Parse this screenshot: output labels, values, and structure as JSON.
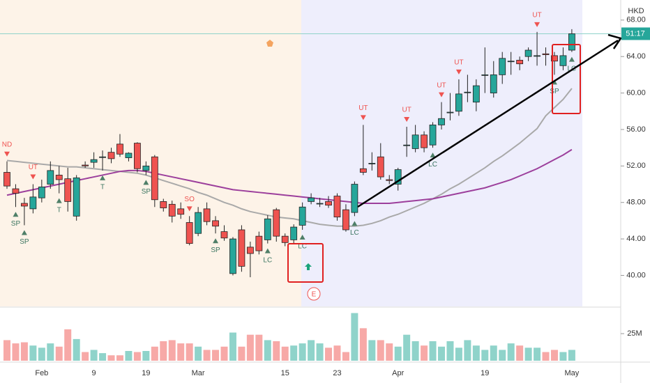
{
  "chart_data": {
    "type": "candlestick",
    "currency": "HKD",
    "price_tag": "51:17",
    "price_line": 66.5,
    "earnings_marker": "E",
    "categories": [
      null,
      null,
      null,
      null,
      "Feb",
      null,
      null,
      null,
      null,
      null,
      "9",
      null,
      null,
      null,
      null,
      null,
      "19",
      null,
      null,
      null,
      null,
      null,
      "Mar",
      null,
      null,
      null,
      null,
      null,
      null,
      null,
      null,
      null,
      "15",
      null,
      null,
      null,
      null,
      null,
      "23",
      null,
      null,
      null,
      null,
      null,
      null,
      "Apr",
      null,
      null,
      null,
      null,
      null,
      null,
      null,
      null,
      null,
      "19",
      null,
      null,
      null,
      null,
      null,
      null,
      null,
      null,
      null,
      "May"
    ],
    "open": [
      51.3,
      49.5,
      47.9,
      47.3,
      48.5,
      50,
      51,
      50.6,
      46.5,
      52.1,
      52.4,
      53,
      53.5,
      54.4,
      52.9,
      54.5,
      51.5,
      53,
      48.1,
      47.8,
      47.3,
      45.8,
      44.6,
      47.3,
      46,
      44.8,
      40.2,
      45,
      43.1,
      44.3,
      43.9,
      47.2,
      44.3,
      43.9,
      45.5,
      48.1,
      47.9,
      48.1,
      48.7,
      47.2,
      46.9,
      51.7,
      52.3,
      53,
      50.5,
      50,
      54.3,
      53.9,
      55.4,
      54.3,
      56.5,
      57.9,
      58,
      60.1,
      59,
      62,
      60,
      62,
      63.5,
      63.6,
      64,
      64.1,
      64.3,
      64.1,
      63,
      64.7
    ],
    "high": [
      52.5,
      50,
      48.5,
      50,
      50.5,
      52.5,
      52,
      51.8,
      51,
      52.5,
      53.5,
      53.7,
      54,
      55.5,
      53.5,
      54.6,
      52.5,
      53.2,
      48.4,
      48.2,
      48,
      46.5,
      47.5,
      48,
      46.5,
      45.5,
      44.2,
      45.5,
      43.7,
      44.8,
      46.6,
      47.4,
      44.6,
      45.6,
      48,
      49,
      48.5,
      48.7,
      49,
      47.8,
      50.3,
      56.5,
      53.5,
      54.5,
      51,
      51.8,
      56.3,
      56.5,
      55.8,
      56.8,
      59,
      60,
      61.5,
      62,
      61.5,
      65,
      63.5,
      64.5,
      64.5,
      64,
      65,
      66.7,
      65,
      64.5,
      65,
      67
    ],
    "low": [
      49.5,
      47.5,
      45.5,
      46.8,
      48,
      49.5,
      49,
      47,
      46,
      51.8,
      51.8,
      51.5,
      52.3,
      53,
      52.5,
      51.3,
      51,
      47.5,
      47,
      45.8,
      46.2,
      43.3,
      44.3,
      45.5,
      44.6,
      43.8,
      40,
      40.4,
      39.8,
      42.3,
      43.5,
      43.7,
      43.2,
      43.5,
      45,
      47.8,
      47.5,
      47.4,
      46,
      44.8,
      46.5,
      51,
      51.5,
      50.5,
      50,
      49.3,
      53,
      53.5,
      53.5,
      54,
      56,
      57,
      57.5,
      59,
      58,
      60,
      59.5,
      61,
      62,
      62.5,
      63.5,
      63,
      63,
      62,
      62.5,
      64.5
    ],
    "close": [
      49.8,
      49,
      47.6,
      48.6,
      49.7,
      51.5,
      50.5,
      48.1,
      50.7,
      52,
      52.7,
      53,
      52.8,
      53.3,
      53.4,
      51.7,
      52,
      48.3,
      47.4,
      46.5,
      46.7,
      43.5,
      46.9,
      45.9,
      45.4,
      44.1,
      44,
      41,
      42.4,
      42.7,
      46.2,
      44.3,
      43.6,
      45.3,
      47.5,
      48.5,
      47.9,
      47.7,
      46.4,
      45,
      50,
      51.3,
      52.3,
      50.8,
      50.4,
      51.6,
      54.3,
      55.4,
      54,
      56.5,
      57.2,
      57.9,
      59.9,
      60.1,
      60.8,
      62,
      62,
      63.8,
      63.5,
      63.2,
      64.7,
      64.1,
      64.2,
      63.5,
      64.1,
      66.5
    ],
    "volume": [
      19,
      16,
      17,
      14,
      12,
      16,
      13,
      29,
      20,
      8,
      10,
      7,
      5,
      5,
      9,
      8,
      9,
      13,
      18,
      19,
      16,
      16,
      13,
      10,
      10,
      13,
      26,
      13,
      24,
      24,
      19,
      18,
      13,
      14,
      16,
      19,
      16,
      12,
      14,
      8,
      44,
      30,
      19,
      19,
      16,
      13,
      24,
      18,
      14,
      18,
      13,
      18,
      12,
      19,
      14,
      10,
      14,
      10,
      16,
      14,
      12,
      12,
      8,
      10,
      8,
      10
    ],
    "moving_averages": [
      {
        "color": "#a9a9a9",
        "values": [
          52.6,
          52.5,
          52.4,
          52.3,
          52.2,
          52.1,
          52.0,
          51.9,
          51.9,
          51.8,
          51.7,
          51.6,
          51.5,
          51.4,
          51.3,
          51.2,
          51.0,
          50.7,
          50.4,
          50.1,
          49.8,
          49.5,
          49.1,
          48.8,
          48.4,
          48.0,
          47.7,
          47.3,
          47.0,
          46.8,
          46.6,
          46.4,
          46.3,
          46.2,
          46.0,
          45.8,
          45.6,
          45.5,
          45.4,
          45.4,
          45.4,
          45.5,
          45.7,
          46.0,
          46.4,
          46.7,
          47.1,
          47.5,
          47.9,
          48.4,
          48.9,
          49.5,
          50.0,
          50.6,
          51.2,
          51.8,
          52.5,
          53.1,
          53.8,
          54.5,
          55.3,
          56.1,
          57.5,
          58.4,
          59.3,
          60.5
        ]
      },
      {
        "color": "#9c3f9c",
        "values": [
          48.8,
          49.0,
          49.2,
          49.4,
          49.6,
          49.8,
          50.0,
          50.2,
          50.4,
          50.6,
          50.8,
          51.0,
          51.2,
          51.4,
          51.5,
          51.5,
          51.4,
          51.2,
          51.0,
          50.8,
          50.6,
          50.4,
          50.2,
          50.0,
          49.8,
          49.6,
          49.4,
          49.3,
          49.2,
          49.1,
          49.0,
          48.9,
          48.8,
          48.7,
          48.6,
          48.5,
          48.4,
          48.3,
          48.2,
          48.1,
          48.0,
          47.9,
          47.9,
          47.9,
          47.9,
          48.0,
          48.1,
          48.2,
          48.3,
          48.4,
          48.6,
          48.8,
          49.0,
          49.2,
          49.4,
          49.6,
          49.9,
          50.2,
          50.5,
          50.9,
          51.3,
          51.7,
          52.2,
          52.7,
          53.2,
          53.8
        ]
      }
    ],
    "signals_above": [
      "ND",
      null,
      null,
      "UT",
      null,
      null,
      null,
      null,
      null,
      null,
      null,
      null,
      null,
      null,
      null,
      null,
      null,
      null,
      null,
      null,
      null,
      "SO",
      null,
      null,
      null,
      null,
      null,
      null,
      null,
      null,
      null,
      null,
      null,
      null,
      null,
      null,
      null,
      null,
      null,
      null,
      null,
      "UT",
      null,
      null,
      null,
      null,
      "UT",
      null,
      null,
      null,
      "UT",
      null,
      "UT",
      null,
      null,
      null,
      null,
      null,
      null,
      null,
      null,
      "UT",
      null,
      null,
      null,
      null
    ],
    "signals_below": [
      null,
      "SP",
      "SP",
      null,
      null,
      null,
      "T",
      null,
      null,
      null,
      null,
      "T",
      null,
      null,
      null,
      null,
      "SP",
      null,
      null,
      null,
      null,
      null,
      null,
      null,
      "SP",
      null,
      null,
      null,
      null,
      null,
      "LC",
      null,
      null,
      null,
      "LC",
      null,
      null,
      null,
      null,
      null,
      "LC",
      null,
      null,
      null,
      null,
      null,
      null,
      null,
      null,
      "LC",
      null,
      null,
      null,
      null,
      null,
      null,
      null,
      null,
      null,
      null,
      null,
      null,
      null,
      "SP",
      null,
      "LC"
    ],
    "up_color": "#26a69a",
    "down_color": "#ef5350",
    "volume_up_color": "#8fd3ca",
    "volume_down_color": "#f7a9a7",
    "ylim": [
      36.6,
      70.2
    ],
    "yticks": [
      {
        "value": 40,
        "label": "40.00"
      },
      {
        "value": 44,
        "label": "44.00"
      },
      {
        "value": 48,
        "label": "48.00"
      },
      {
        "value": 52,
        "label": "52.00"
      },
      {
        "value": 56,
        "label": "56.00"
      },
      {
        "value": 60,
        "label": "60.00"
      },
      {
        "value": 64,
        "label": "64.00"
      },
      {
        "value": 68,
        "label": "68.00"
      }
    ],
    "volume_ylim": [
      0,
      45
    ],
    "volume_ticks": [
      {
        "value": 25,
        "label": "25M"
      }
    ]
  }
}
